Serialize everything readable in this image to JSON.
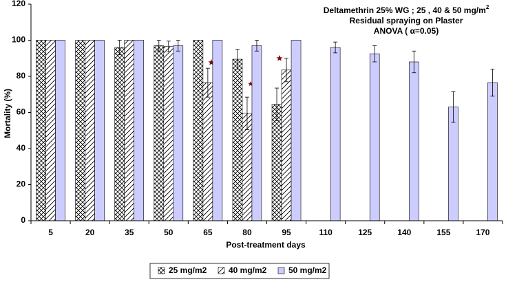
{
  "chart_data": {
    "type": "bar",
    "title_lines": [
      "Deltamethrin 25% WG ;  25 , 40 & 50 mg/m",
      "Residual spraying on Plaster",
      "ANOVA ( α=0.05)"
    ],
    "title_superscript": "2",
    "x_label": "Post-treatment days",
    "y_label": "Mortality (%)",
    "categories": [
      "5",
      "20",
      "35",
      "50",
      "65",
      "80",
      "95",
      "110",
      "125",
      "140",
      "155",
      "170"
    ],
    "series": [
      {
        "name": "25 mg/m2",
        "color": "#ffffff",
        "pattern": "crosshatch",
        "values": [
          100,
          100,
          96,
          97,
          100,
          89.5,
          64.5,
          null,
          null,
          null,
          null,
          null
        ],
        "errors": [
          null,
          null,
          4,
          3,
          null,
          5.5,
          9,
          null,
          null,
          null,
          null,
          null
        ]
      },
      {
        "name": "40 mg/m2",
        "color": "#ffffff",
        "pattern": "diagonal",
        "values": [
          100,
          100,
          100,
          96.5,
          76.5,
          59.5,
          83.5,
          null,
          null,
          null,
          null,
          null
        ],
        "errors": [
          null,
          null,
          null,
          3,
          8,
          9,
          6.5,
          null,
          null,
          null,
          null,
          null
        ]
      },
      {
        "name": "50 mg/m2",
        "color": "#ccccff",
        "pattern": "solid",
        "values": [
          100,
          100,
          100,
          97,
          100,
          97,
          100,
          96,
          92.5,
          88,
          63,
          76.5
        ],
        "errors": [
          null,
          null,
          null,
          3,
          null,
          3,
          null,
          3,
          4.5,
          6,
          8.5,
          7.5
        ]
      }
    ],
    "ylim": [
      0,
      120
    ],
    "yticks": [
      0,
      20,
      40,
      60,
      80,
      100,
      120
    ],
    "grid": false,
    "legend": "bottom"
  }
}
